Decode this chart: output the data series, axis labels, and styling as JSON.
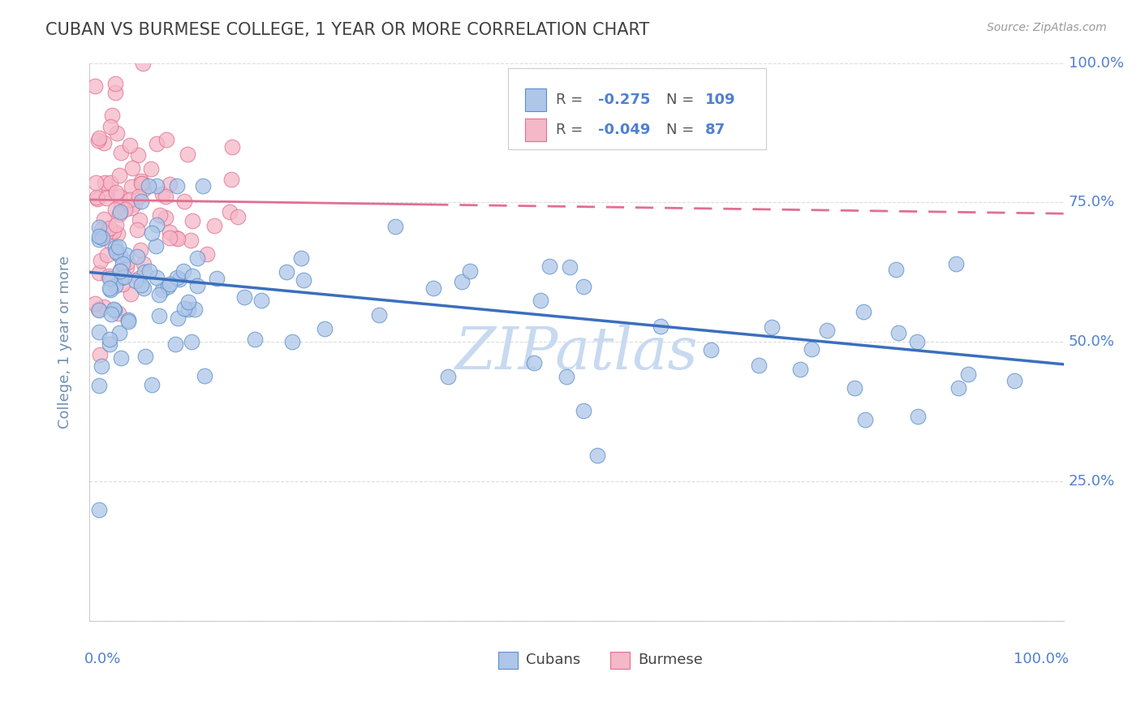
{
  "title": "CUBAN VS BURMESE COLLEGE, 1 YEAR OR MORE CORRELATION CHART",
  "source_text": "Source: ZipAtlas.com",
  "ylabel": "College, 1 year or more",
  "ytick_labels": [
    "",
    "25.0%",
    "50.0%",
    "75.0%",
    "100.0%"
  ],
  "ytick_values": [
    0.0,
    0.25,
    0.5,
    0.75,
    1.0
  ],
  "xlim": [
    0.0,
    1.0
  ],
  "ylim": [
    0.0,
    1.0
  ],
  "cubans_R": -0.275,
  "cubans_N": 109,
  "burmese_R": -0.049,
  "burmese_N": 87,
  "legend_label_cubans": "Cubans",
  "legend_label_burmese": "Burmese",
  "color_cubans_fill": "#aec6e8",
  "color_cubans_edge": "#5b8fc9",
  "color_burmese_fill": "#f5b8c8",
  "color_burmese_edge": "#e07090",
  "color_line_cubans": "#3a6fbe",
  "color_line_burmese": "#e07090",
  "color_title": "#404040",
  "color_axis_label": "#7090b0",
  "color_tick_label": "#5080d0",
  "color_grid": "#dddddd",
  "watermark_text": "ZIPatlas",
  "watermark_color": "#c8daf0",
  "cuban_line_intercept": 0.625,
  "cuban_line_slope": -0.165,
  "burmese_line_intercept": 0.755,
  "burmese_line_slope": -0.025
}
